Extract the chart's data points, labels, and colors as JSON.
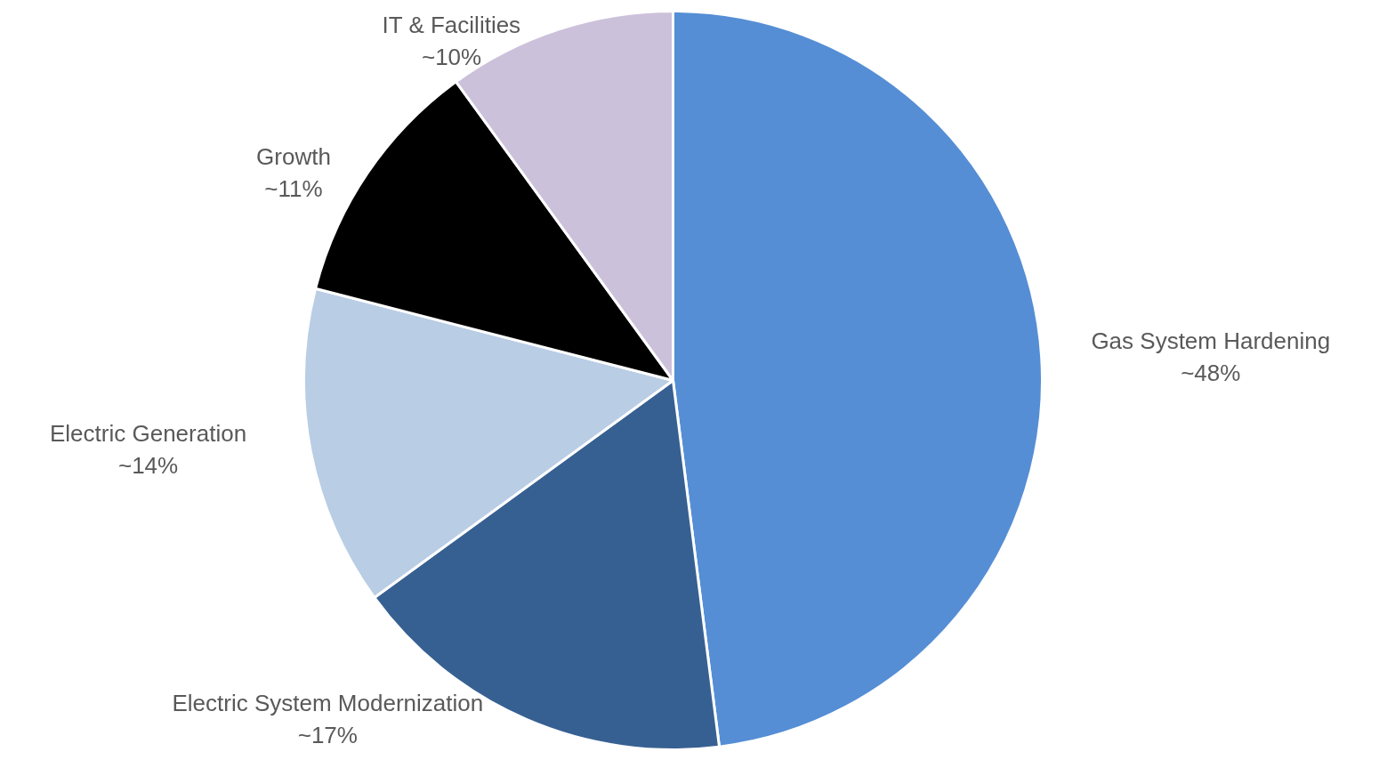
{
  "chart_data": {
    "type": "pie",
    "categories": [
      "Gas System Hardening",
      "Electric System Modernization",
      "Electric Generation",
      "Growth",
      "IT & Facilities"
    ],
    "values": [
      48,
      17,
      14,
      11,
      10
    ],
    "colors": [
      "#558ed5",
      "#376092",
      "#b9cde5",
      "#000000",
      "#ccc1da"
    ],
    "value_labels": [
      "~48%",
      "~17%",
      "~14%",
      "~11%",
      "~10%"
    ]
  }
}
